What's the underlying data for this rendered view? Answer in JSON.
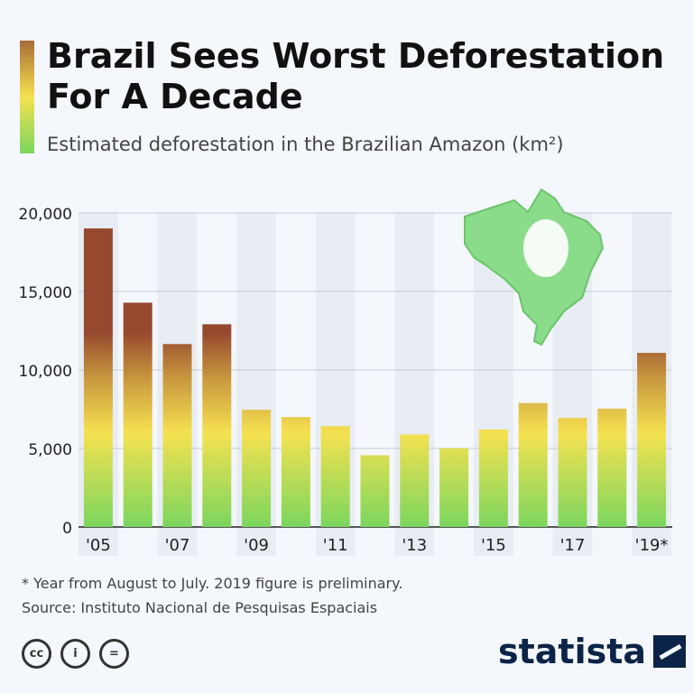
{
  "title": "Brazil Sees Worst Deforestation For A Decade",
  "subtitle": "Estimated deforestation in the Brazilian Amazon (km²)",
  "note": "* Year from August to July. 2019 figure is preliminary.",
  "source": "Source: Instituto Nacional de Pesquisas Espaciais",
  "brand": "statista",
  "license_icons": [
    "cc",
    "by",
    "nd"
  ],
  "colors": {
    "low": "#7bd65e",
    "mid": "#f5e150",
    "high": "#c9993f",
    "top": "#96492e",
    "stripe": "#e8edf3"
  },
  "chart_data": {
    "type": "bar",
    "categories": [
      "2005",
      "2006",
      "2007",
      "2008",
      "2009",
      "2010",
      "2011",
      "2012",
      "2013",
      "2014",
      "2015",
      "2016",
      "2017",
      "2018",
      "2019*"
    ],
    "tick_labels": [
      "'05",
      "",
      "'07",
      "",
      "'09",
      "",
      "'11",
      "",
      "'13",
      "",
      "'15",
      "",
      "'17",
      "",
      "'19*"
    ],
    "values": [
      19014,
      14286,
      11651,
      12911,
      7464,
      7000,
      6418,
      4571,
      5891,
      5012,
      6207,
      7893,
      6947,
      7536,
      11088
    ],
    "yticks": [
      "0",
      "5,000",
      "10,000",
      "15,000",
      "20,000"
    ],
    "ylim": [
      0,
      20000
    ],
    "grid": true
  }
}
